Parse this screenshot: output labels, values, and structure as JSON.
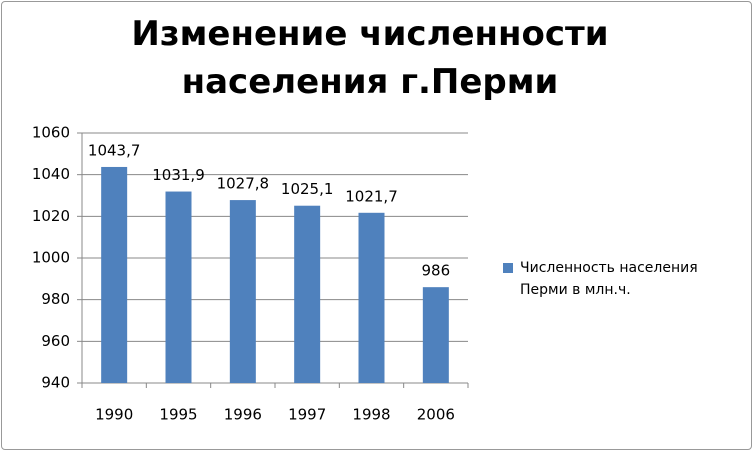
{
  "chart_data": {
    "type": "bar",
    "title": "Изменение численности населения г.Перми",
    "categories": [
      "1990",
      "1995",
      "1996",
      "1997",
      "1998",
      "2006"
    ],
    "series": [
      {
        "name": "Численность населения Перми в млн.ч.",
        "color": "#4f81bd",
        "values": [
          1043.7,
          1031.9,
          1027.8,
          1025.1,
          1021.7,
          986
        ],
        "value_labels": [
          "1043,7",
          "1031,9",
          "1027,8",
          "1025,1",
          "1021,7",
          "986"
        ]
      }
    ],
    "ylim": [
      940,
      1060
    ],
    "yticks": [
      940,
      960,
      980,
      1000,
      1020,
      1040,
      1060
    ],
    "grid": true,
    "legend": "right"
  }
}
